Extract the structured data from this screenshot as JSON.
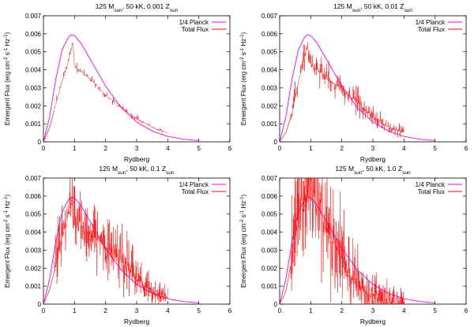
{
  "chart_data": [
    {
      "type": "line",
      "title": "125 M",
      "title_m_sub": "sun",
      "title_rest": ", 50 kK, 0.001 Z",
      "title_z_sub": "sun",
      "xlabel": "Rydberg",
      "ylabel_parts": [
        "Emergent Flux (erg cm",
        "-2",
        " s",
        "-1",
        " Hz",
        "-1",
        ")"
      ],
      "xlim": [
        0,
        6
      ],
      "ylim": [
        0,
        0.007
      ],
      "xticks": [
        "0",
        "1",
        "2",
        "3",
        "4",
        "5",
        "6"
      ],
      "yticks": [
        "0",
        "0.001",
        "0.002",
        "0.003",
        "0.004",
        "0.005",
        "0.006",
        "0.007"
      ],
      "legend": [
        "1/4 Planck",
        "Total Flux"
      ],
      "legend_position": "top-right",
      "colors": {
        "planck": "#ff00ff",
        "total": "#ff0000"
      },
      "series": [
        {
          "name": "1/4 Planck",
          "x": [
            0.0,
            0.2,
            0.4,
            0.6,
            0.8,
            0.9,
            1.0,
            1.2,
            1.5,
            2.0,
            2.5,
            3.0,
            3.5,
            4.0,
            4.5,
            5.0
          ],
          "values": [
            0.0,
            0.0014,
            0.0035,
            0.0051,
            0.0058,
            0.00595,
            0.0059,
            0.0055,
            0.0046,
            0.0031,
            0.0019,
            0.0011,
            0.0006,
            0.0003,
            0.00015,
            7e-05
          ]
        },
        {
          "name": "Total Flux",
          "x": [
            0.0,
            0.2,
            0.4,
            0.6,
            0.75,
            0.9,
            0.95,
            1.0,
            1.5,
            2.0,
            2.5,
            3.0,
            3.5,
            4.0
          ],
          "values": [
            0.0,
            0.0008,
            0.0021,
            0.0034,
            0.0041,
            0.0052,
            0.0055,
            0.0042,
            0.0035,
            0.0026,
            0.0019,
            0.0013,
            0.0008,
            0.0005
          ]
        }
      ]
    },
    {
      "type": "line",
      "title": "125 M",
      "title_m_sub": "sun",
      "title_rest": ", 50 kK, 0.01 Z",
      "title_z_sub": "sun",
      "xlabel": "Rydberg",
      "ylabel_parts": [
        "Emergent Flux (erg cm",
        "-2",
        " s",
        "-1",
        " Hz",
        "-1",
        ")"
      ],
      "xlim": [
        0,
        6
      ],
      "ylim": [
        0,
        0.007
      ],
      "xticks": [
        "0",
        "1",
        "2",
        "3",
        "4",
        "5",
        "6"
      ],
      "yticks": [
        "0",
        "0.001",
        "0.002",
        "0.003",
        "0.004",
        "0.005",
        "0.006",
        "0.007"
      ],
      "legend": [
        "1/4 Planck",
        "Total Flux"
      ],
      "legend_position": "top-right",
      "colors": {
        "planck": "#ff00ff",
        "total": "#ff0000"
      },
      "series": [
        {
          "name": "1/4 Planck",
          "x": [
            0.0,
            0.2,
            0.4,
            0.6,
            0.8,
            0.9,
            1.0,
            1.2,
            1.5,
            2.0,
            2.5,
            3.0,
            3.5,
            4.0,
            4.5,
            5.0
          ],
          "values": [
            0.0,
            0.0014,
            0.0035,
            0.0051,
            0.0058,
            0.00595,
            0.0059,
            0.0055,
            0.0046,
            0.0031,
            0.0019,
            0.0011,
            0.0006,
            0.0003,
            0.00015,
            7e-05
          ]
        },
        {
          "name": "Total Flux",
          "x": [
            0.0,
            0.2,
            0.4,
            0.6,
            0.75,
            0.9,
            1.0,
            1.5,
            2.0,
            2.5,
            3.0,
            3.5,
            4.0
          ],
          "values": [
            0.0,
            0.0005,
            0.0016,
            0.0033,
            0.0043,
            0.0053,
            0.0043,
            0.0036,
            0.0029,
            0.0022,
            0.0014,
            0.0008,
            0.0005
          ]
        }
      ]
    },
    {
      "type": "line",
      "title": "125 M",
      "title_m_sub": "sun",
      "title_rest": ", 50 kK, 0.1 Z",
      "title_z_sub": "sun",
      "xlabel": "Rydberg",
      "ylabel_parts": [
        "Emergent Flux (erg cm",
        "-2",
        " s",
        "-1",
        " Hz",
        "-1",
        ")"
      ],
      "xlim": [
        0,
        6
      ],
      "ylim": [
        0,
        0.007
      ],
      "xticks": [
        "0",
        "1",
        "2",
        "3",
        "4",
        "5",
        "6"
      ],
      "yticks": [
        "0",
        "0.001",
        "0.002",
        "0.003",
        "0.004",
        "0.005",
        "0.006",
        "0.007"
      ],
      "legend": [
        "1/4 Planck",
        "Total Flux"
      ],
      "legend_position": "top-right",
      "colors": {
        "planck": "#ff00ff",
        "total": "#ff0000"
      },
      "series": [
        {
          "name": "1/4 Planck",
          "x": [
            0.0,
            0.2,
            0.4,
            0.6,
            0.8,
            0.9,
            1.0,
            1.2,
            1.5,
            2.0,
            2.5,
            3.0,
            3.5,
            4.0,
            4.5,
            5.0
          ],
          "values": [
            0.0,
            0.0014,
            0.0035,
            0.0051,
            0.0058,
            0.00595,
            0.0059,
            0.0055,
            0.0046,
            0.0031,
            0.0019,
            0.0011,
            0.0006,
            0.0003,
            0.00015,
            7e-05
          ]
        },
        {
          "name": "Total Flux",
          "x": [
            0.0,
            0.2,
            0.4,
            0.6,
            0.75,
            0.9,
            1.0,
            1.5,
            2.0,
            2.5,
            3.0,
            3.5,
            4.0
          ],
          "values": [
            0.0,
            0.0008,
            0.0022,
            0.0038,
            0.0046,
            0.0057,
            0.0046,
            0.0039,
            0.0032,
            0.0024,
            0.0014,
            0.0006,
            0.0003
          ]
        }
      ]
    },
    {
      "type": "line",
      "title": "125 M",
      "title_m_sub": "sun",
      "title_rest": ", 50 kK, 1.0 Z",
      "title_z_sub": "sun",
      "xlabel": "Rydberg",
      "ylabel_parts": [
        "Emergent Flux (erg cm",
        "-2",
        " s",
        "-1",
        " Hz",
        "-1",
        ")"
      ],
      "xlim": [
        0,
        6
      ],
      "ylim": [
        0,
        0.007
      ],
      "xticks": [
        "0",
        "1",
        "2",
        "3",
        "4",
        "5",
        "6"
      ],
      "yticks": [
        "0",
        "0.001",
        "0.002",
        "0.003",
        "0.004",
        "0.005",
        "0.006",
        "0.007"
      ],
      "legend": [
        "1/4 Planck",
        "Total Flux"
      ],
      "legend_position": "top-right",
      "colors": {
        "planck": "#ff00ff",
        "total": "#ff0000"
      },
      "series": [
        {
          "name": "1/4 Planck",
          "x": [
            0.0,
            0.2,
            0.4,
            0.6,
            0.8,
            0.9,
            1.0,
            1.2,
            1.5,
            2.0,
            2.5,
            3.0,
            3.5,
            4.0,
            4.5,
            5.0
          ],
          "values": [
            0.0,
            0.0014,
            0.0035,
            0.0051,
            0.0058,
            0.00595,
            0.0059,
            0.0055,
            0.0046,
            0.0031,
            0.0019,
            0.0011,
            0.0006,
            0.0003,
            0.00015,
            7e-05
          ]
        },
        {
          "name": "Total Flux",
          "x": [
            0.0,
            0.2,
            0.4,
            0.5,
            0.7,
            0.9,
            1.1,
            1.3,
            1.5,
            1.8,
            2.0,
            2.3,
            2.6,
            3.0,
            3.5,
            4.0
          ],
          "values": [
            0.0,
            0.0007,
            0.0026,
            0.0042,
            0.0056,
            0.006,
            0.0055,
            0.0049,
            0.0043,
            0.0031,
            0.0024,
            0.0015,
            0.0008,
            0.0003,
            0.0001,
            0.0
          ]
        }
      ]
    }
  ]
}
